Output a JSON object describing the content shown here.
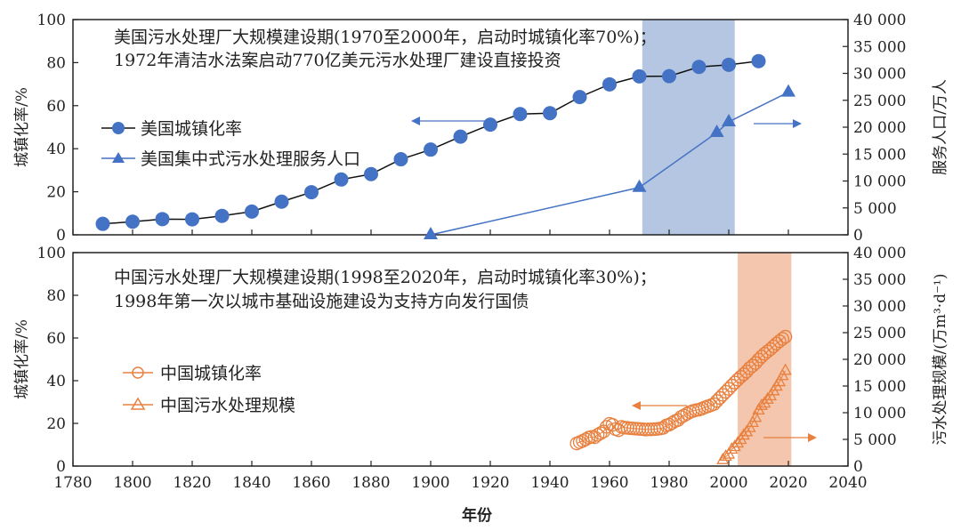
{
  "chart_data": [
    {
      "type": "line",
      "panel": "top",
      "annotation": [
        "美国污水处理厂大规模建设期(1970至2000年，启动时城镇化率70%)；",
        "1972年清洁水法案启动770亿美元污水处理厂建设直接投资"
      ],
      "xlabel": "年份",
      "ylabel": "城镇化率/%",
      "y2label": "服务人口/万人",
      "xlim": [
        1780,
        2040
      ],
      "ylim": [
        0,
        100
      ],
      "y2lim": [
        0,
        40000
      ],
      "xticks": [
        1780,
        1800,
        1820,
        1840,
        1860,
        1880,
        1900,
        1920,
        1940,
        1960,
        1980,
        2000,
        2020,
        2040
      ],
      "yticks": [
        0,
        20,
        40,
        60,
        80,
        100
      ],
      "y2ticks": [
        "0",
        "5 000",
        "10 000",
        "15 000",
        "20 000",
        "25 000",
        "30 000",
        "35 000",
        "40 000"
      ],
      "highlight_band": [
        1971,
        2002
      ],
      "band_color": "#b4c6e2",
      "legend_placement": "left",
      "series": [
        {
          "name": "美国城镇化率",
          "axis": "left",
          "marker": "circle",
          "color": "#4472c4",
          "line_color": "#111111",
          "x": [
            1790,
            1800,
            1810,
            1820,
            1830,
            1840,
            1850,
            1860,
            1870,
            1880,
            1890,
            1900,
            1910,
            1920,
            1930,
            1940,
            1950,
            1960,
            1970,
            1980,
            1990,
            2000,
            2010
          ],
          "y": [
            5.1,
            6.1,
            7.3,
            7.2,
            8.8,
            10.8,
            15.4,
            19.8,
            25.7,
            28.2,
            35.1,
            39.6,
            45.6,
            51.2,
            56.1,
            56.5,
            64.0,
            69.9,
            73.6,
            73.7,
            78.0,
            79.0,
            80.7
          ]
        },
        {
          "name": "美国集中式污水处理服务人口",
          "axis": "right",
          "marker": "triangle",
          "color": "#4472c4",
          "line_color": "#4472c4",
          "x": [
            1900,
            1970,
            1996,
            2000,
            2020
          ],
          "y": [
            0,
            8800,
            19000,
            21000,
            26500
          ]
        }
      ]
    },
    {
      "type": "line",
      "panel": "bottom",
      "annotation": [
        "中国污水处理厂大规模建设期(1998至2020年，启动时城镇化率30%)；",
        "1998年第一次以城市基础设施建设为支持方向发行国债"
      ],
      "xlabel": "年份",
      "ylabel": "城镇化率/%",
      "y2label": "污水处理规模/(万m³·d⁻¹)",
      "xlim": [
        1780,
        2040
      ],
      "ylim": [
        0,
        100
      ],
      "y2lim": [
        0,
        40000
      ],
      "xticks": [
        1780,
        1800,
        1820,
        1840,
        1860,
        1880,
        1900,
        1920,
        1940,
        1960,
        1980,
        2000,
        2020,
        2040
      ],
      "yticks": [
        0,
        20,
        40,
        60,
        80,
        100
      ],
      "y2ticks": [
        "0",
        "5 000",
        "10 000",
        "15 000",
        "20 000",
        "25 000",
        "30 000",
        "35 000",
        "40 000"
      ],
      "highlight_band": [
        2003,
        2021
      ],
      "band_color": "#f4c6ad",
      "legend_placement": "left",
      "series": [
        {
          "name": "中国城镇化率",
          "axis": "left",
          "marker": "open-circle",
          "color": "#e8803f",
          "x_start": 1949,
          "y": [
            10.6,
            11.2,
            11.8,
            12.5,
            13.3,
            13.7,
            13.5,
            14.6,
            15.4,
            16.2,
            18.4,
            19.8,
            19.3,
            17.3,
            16.8,
            18.4,
            18.0,
            17.9,
            17.7,
            17.6,
            17.5,
            17.4,
            17.3,
            17.1,
            17.2,
            17.2,
            17.3,
            17.4,
            17.6,
            17.9,
            19.0,
            19.4,
            20.2,
            21.1,
            21.6,
            23.0,
            23.7,
            24.5,
            25.3,
            25.8,
            26.2,
            26.4,
            26.9,
            27.5,
            28.0,
            28.5,
            29.0,
            30.5,
            31.9,
            33.4,
            34.8,
            36.2,
            37.7,
            39.1,
            40.5,
            41.8,
            43.0,
            44.3,
            45.9,
            47.0,
            48.3,
            49.9,
            51.3,
            52.6,
            53.7,
            54.8,
            56.1,
            57.4,
            58.5,
            59.6,
            60.6
          ]
        },
        {
          "name": "中国污水处理规模",
          "axis": "right",
          "marker": "open-triangle",
          "color": "#e8803f",
          "x_start": 1998,
          "y": [
            1136,
            1767,
            2158,
            3106,
            3578,
            4254,
            4912,
            5725,
            6366,
            7146,
            8106,
            9052,
            10436,
            11303,
            11733,
            12454,
            13087,
            14028,
            14910,
            15743,
            16881,
            17863
          ]
        }
      ]
    }
  ]
}
